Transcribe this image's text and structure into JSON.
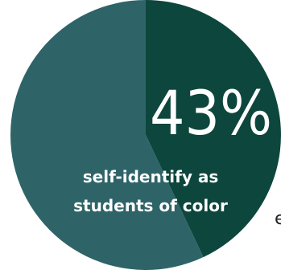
{
  "chart_data": {
    "type": "pie",
    "slices": [
      {
        "value": 43,
        "color": "#0d463c"
      },
      {
        "value": 57,
        "color": "#2e6468"
      }
    ],
    "data_label": "43%",
    "caption": [
      "self-identify as",
      "students of color"
    ]
  },
  "clipped_text": "e"
}
